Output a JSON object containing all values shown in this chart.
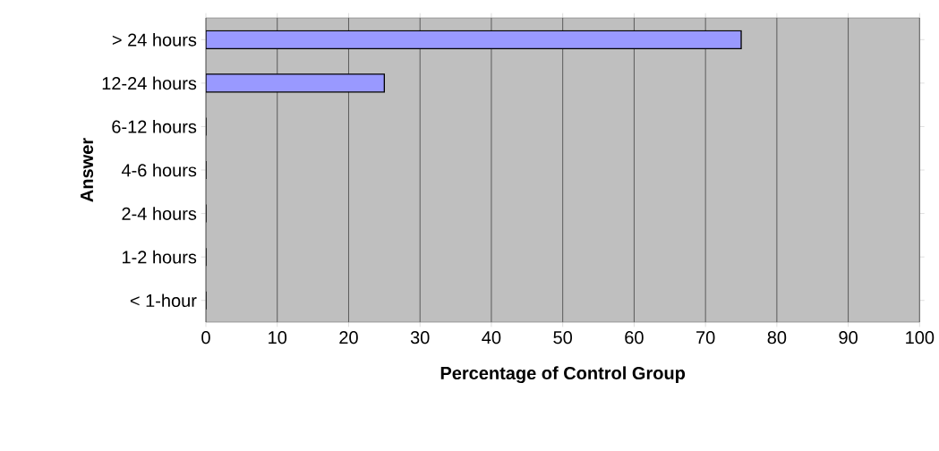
{
  "chart_data": {
    "type": "bar",
    "orientation": "horizontal",
    "categories": [
      "> 24 hours",
      "12-24 hours",
      "6-12 hours",
      "4-6 hours",
      "2-4 hours",
      "1-2 hours",
      "< 1-hour"
    ],
    "values": [
      75,
      25,
      0,
      0,
      0,
      0,
      0
    ],
    "color": "#9999ff",
    "xlim": [
      0,
      100
    ],
    "xticks": [
      0,
      10,
      20,
      30,
      40,
      50,
      60,
      70,
      80,
      90,
      100
    ],
    "xlabel": "Percentage of Control Group",
    "ylabel": "Answer",
    "grid": "x"
  }
}
